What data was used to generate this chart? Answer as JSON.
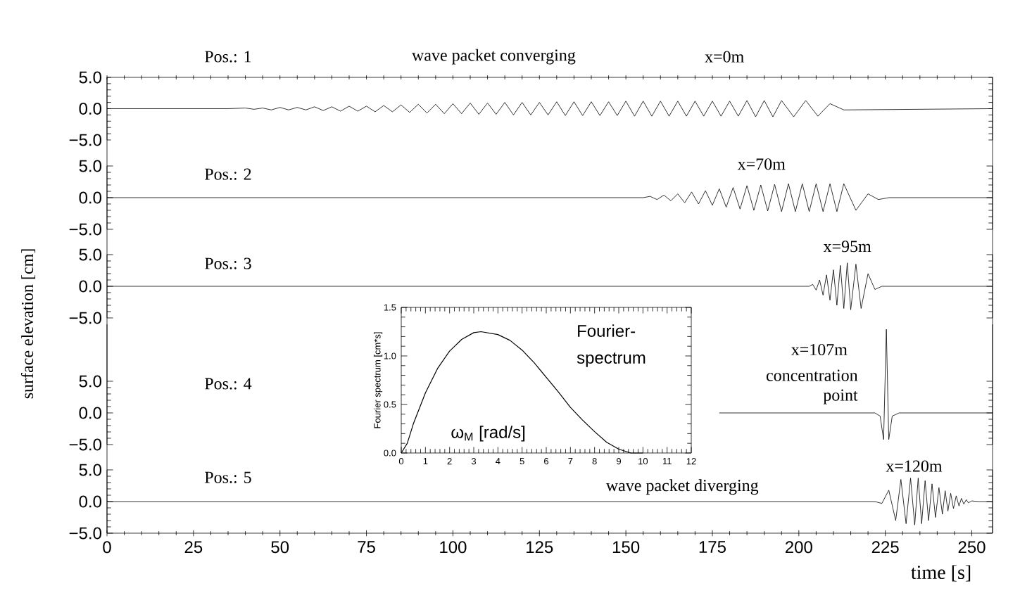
{
  "chart_data": [
    {
      "type": "line",
      "xlim": [
        0,
        256
      ],
      "ylim": [
        -5,
        5
      ],
      "tick_labels": "y",
      "xticks": [
        0,
        25,
        50,
        75,
        100,
        125,
        150,
        175,
        200,
        225,
        250
      ],
      "yticks": [
        {
          "value": -5,
          "label": "−5.0"
        },
        {
          "value": 0,
          "label": "0.0"
        },
        {
          "value": 5,
          "label": "5.0"
        }
      ],
      "annotations": [
        "Pos.: 1",
        "wave packet converging",
        "x=0m"
      ],
      "x": [
        0,
        35,
        40,
        42.5,
        45,
        47.5,
        50,
        52.5,
        55,
        57.5,
        60,
        62.5,
        65,
        67.5,
        70,
        72.5,
        75,
        77.5,
        80,
        82.5,
        85,
        87.5,
        90,
        92.5,
        95,
        97.5,
        100,
        102.5,
        105,
        107.5,
        110,
        112.5,
        115,
        117.5,
        120,
        122.5,
        125,
        127.5,
        130,
        132.5,
        135,
        137.5,
        140,
        142.5,
        145,
        147.5,
        150,
        152.5,
        155,
        157.5,
        160,
        162.5,
        165,
        167.5,
        170,
        172.5,
        175,
        177.5,
        180,
        182.5,
        185,
        187.5,
        190,
        192.5,
        195,
        198.5,
        202,
        205.5,
        209,
        213,
        256
      ],
      "values": [
        0,
        0,
        0.1,
        -0.1,
        0.1,
        -0.2,
        0.2,
        -0.2,
        0.2,
        -0.2,
        0.3,
        -0.3,
        0.3,
        -0.4,
        0.4,
        -0.4,
        0.4,
        -0.5,
        0.5,
        -0.5,
        0.6,
        -0.6,
        0.7,
        -0.7,
        0.7,
        -0.8,
        0.8,
        -0.8,
        0.9,
        -0.9,
        0.9,
        -0.9,
        1.0,
        -1.0,
        1.0,
        -1.0,
        1.0,
        -1.0,
        1.1,
        -1.1,
        1.1,
        -1.1,
        1.1,
        -1.1,
        1.1,
        -1.1,
        1.2,
        -1.2,
        1.2,
        -1.2,
        1.2,
        -1.2,
        1.2,
        -1.2,
        1.2,
        -1.2,
        1.2,
        -1.2,
        1.2,
        -1.2,
        1.3,
        -1.3,
        1.3,
        -1.3,
        1.3,
        -1.3,
        1.3,
        -1.2,
        0.8,
        -0.2,
        0
      ]
    },
    {
      "type": "line",
      "xlim": [
        0,
        256
      ],
      "ylim": [
        -5,
        5
      ],
      "tick_labels": "y",
      "yticks": [
        {
          "value": -5,
          "label": "−5.0"
        },
        {
          "value": 0,
          "label": "0.0"
        },
        {
          "value": 5,
          "label": "5.0"
        }
      ],
      "annotations": [
        "Pos.: 2",
        "x=70m"
      ],
      "x": [
        0,
        155,
        157,
        159,
        161,
        163,
        165,
        167,
        169,
        171,
        173,
        175,
        177,
        179,
        181,
        183,
        185,
        187,
        189,
        191,
        193,
        195,
        197,
        199,
        201,
        203,
        205,
        207,
        209,
        211,
        213,
        216.5,
        220,
        223,
        226,
        256
      ],
      "values": [
        0,
        0,
        0.2,
        -0.3,
        0.4,
        -0.5,
        0.6,
        -0.8,
        0.9,
        -1.0,
        1.1,
        -1.2,
        1.4,
        -1.5,
        1.6,
        -1.8,
        1.9,
        -2.0,
        2.0,
        -2.1,
        2.1,
        -2.2,
        2.2,
        -2.2,
        2.2,
        -2.2,
        2.2,
        -2.2,
        2.2,
        -2.2,
        2.2,
        -2.0,
        0.6,
        -0.3,
        0,
        0
      ]
    },
    {
      "type": "line",
      "xlim": [
        0,
        256
      ],
      "ylim": [
        -5,
        5
      ],
      "tick_labels": "y",
      "yticks": [
        {
          "value": -5,
          "label": "−5.0"
        },
        {
          "value": 0,
          "label": "0.0"
        },
        {
          "value": 5,
          "label": "5.0"
        }
      ],
      "ylabel": "surface elevation [cm]",
      "annotations": [
        "Pos.: 3",
        "x=95m"
      ],
      "x": [
        0,
        203,
        204,
        205,
        206,
        207,
        208,
        209,
        210,
        211,
        212,
        213,
        214,
        215,
        216.5,
        218,
        220,
        222,
        224,
        256
      ],
      "values": [
        0,
        0,
        0.3,
        -0.6,
        1.0,
        -1.4,
        1.8,
        -2.2,
        2.6,
        -3.0,
        3.3,
        -3.5,
        3.7,
        -3.7,
        3.5,
        -3.5,
        2.0,
        -0.5,
        0,
        0
      ]
    },
    {
      "type": "line",
      "xlim": [
        0,
        256
      ],
      "ylim": [
        -5,
        14
      ],
      "tick_labels": "y",
      "yticks": [
        {
          "value": -5,
          "label": "−5.0"
        },
        {
          "value": 0,
          "label": "0.0"
        },
        {
          "value": 5,
          "label": "5.0"
        }
      ],
      "annotations": [
        "Pos.: 4",
        "x=107m",
        "concentration point"
      ],
      "x": [
        177,
        222,
        223.5,
        224.5,
        225.3,
        226,
        227,
        229,
        256
      ],
      "values": [
        0,
        0,
        -0.5,
        -4.2,
        13.2,
        -4.2,
        -0.5,
        0,
        0
      ]
    },
    {
      "type": "line",
      "xlim": [
        0,
        256
      ],
      "ylim": [
        -5,
        5
      ],
      "xticks": [
        0,
        25,
        50,
        75,
        100,
        125,
        150,
        175,
        200,
        225,
        250
      ],
      "yticks": [
        {
          "value": -5,
          "label": "−5.0"
        },
        {
          "value": 0,
          "label": "0.0"
        },
        {
          "value": 5,
          "label": "5.0"
        }
      ],
      "xlabel": "time [s]",
      "annotations": [
        "Pos.: 5",
        "wave packet diverging",
        "x=120m"
      ],
      "x": [
        0,
        222,
        224,
        226,
        228,
        229.5,
        231,
        232.3,
        233.5,
        234.5,
        235.5,
        236.5,
        237.5,
        238.5,
        239.5,
        240.5,
        241.5,
        242.3,
        243.1,
        243.9,
        244.7,
        245.5,
        246.3,
        247,
        247.7,
        248.4,
        249,
        250,
        252,
        256
      ],
      "values": [
        0,
        0,
        -0.3,
        1.8,
        -3.0,
        3.5,
        -3.5,
        3.7,
        -3.7,
        3.7,
        -3.5,
        3.3,
        -3.0,
        2.8,
        -2.5,
        2.2,
        -2.0,
        1.7,
        -1.5,
        1.3,
        -1.1,
        0.9,
        -0.7,
        0.5,
        -0.4,
        0.3,
        -0.2,
        0.1,
        0,
        0
      ]
    },
    {
      "type": "line",
      "xlim": [
        0,
        12
      ],
      "ylim": [
        0,
        1.5
      ],
      "xticks": [
        0,
        1,
        2,
        3,
        4,
        5,
        6,
        7,
        8,
        9,
        10,
        11,
        12
      ],
      "yticks": [
        {
          "value": 0,
          "label": "0.0"
        },
        {
          "value": 0.5,
          "label": "0.5"
        },
        {
          "value": 1,
          "label": "1.0"
        },
        {
          "value": 1.5,
          "label": "1.5"
        }
      ],
      "ylabel": "Fourier spectrum [cm*s]",
      "annotations": [
        "Fourier-",
        "spectrum",
        "ω$_{M}$ [rad/s]"
      ],
      "x": [
        0,
        0.25,
        0.5,
        1,
        1.5,
        2,
        2.5,
        3,
        3.3,
        4,
        4.5,
        5,
        5.5,
        6,
        6.5,
        7,
        7.5,
        8,
        8.5,
        9,
        9.5,
        10
      ],
      "values": [
        0,
        0.1,
        0.3,
        0.62,
        0.87,
        1.05,
        1.17,
        1.24,
        1.25,
        1.22,
        1.16,
        1.06,
        0.93,
        0.78,
        0.63,
        0.47,
        0.34,
        0.22,
        0.11,
        0.04,
        0,
        0
      ]
    }
  ]
}
